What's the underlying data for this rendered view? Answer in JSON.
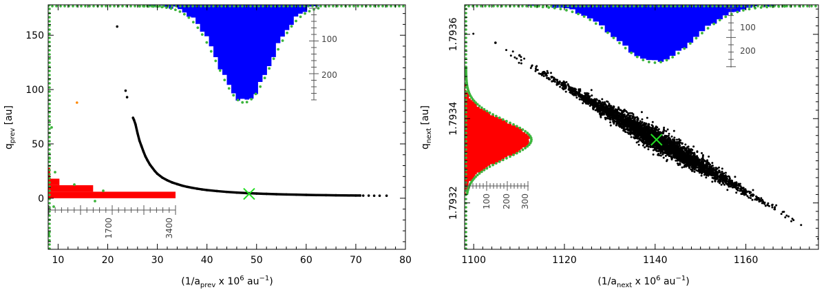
{
  "chart_data": [
    {
      "type": "scatter",
      "panel": "left",
      "xlabel": "(1/a_prev × 10^6 au^-1)",
      "xlabel_parts": {
        "open": "(1/a",
        "sub": "prev",
        "mid": " x 10",
        "sup1": "6",
        "unit": " au",
        "sup2": "−1",
        "close": ")"
      },
      "ylabel_parts": {
        "main": "q",
        "sub": "prev",
        "unit": " [au]"
      },
      "xlim": [
        8,
        80
      ],
      "ylim": [
        -47,
        178
      ],
      "xticks": [
        10,
        20,
        30,
        40,
        50,
        60,
        70,
        80
      ],
      "xtick_labels": [
        "10",
        "20",
        "30",
        "40",
        "50",
        "60",
        "70",
        "80"
      ],
      "yticks": [
        0,
        50,
        100,
        150
      ],
      "ytick_labels": [
        "0",
        "50",
        "100",
        "150"
      ],
      "nominal_orbit": {
        "x": 48.5,
        "y": 4,
        "marker": "x",
        "color": "#22dd22"
      },
      "outlier_point": {
        "x": 13.8,
        "y": 88,
        "color": "#ff8800"
      },
      "scatter_points": [
        [
          21.9,
          158
        ],
        [
          23.6,
          99
        ],
        [
          23.9,
          93
        ],
        [
          25.1,
          74
        ],
        [
          25.3,
          72
        ],
        [
          25.6,
          68
        ],
        [
          26.0,
          60
        ],
        [
          26.4,
          53
        ],
        [
          26.8,
          48
        ],
        [
          27.2,
          43
        ],
        [
          27.6,
          38.5
        ],
        [
          28.0,
          35
        ],
        [
          28.5,
          31
        ],
        [
          29.0,
          28
        ],
        [
          29.5,
          25
        ],
        [
          30.0,
          22.5
        ],
        [
          31.0,
          19
        ],
        [
          32.0,
          16.5
        ],
        [
          33.0,
          14.5
        ],
        [
          34.0,
          13
        ],
        [
          35.0,
          11.6
        ],
        [
          36.0,
          10.5
        ],
        [
          37.0,
          9.6
        ],
        [
          38.0,
          8.8
        ],
        [
          39.0,
          8.1
        ],
        [
          40.0,
          7.5
        ],
        [
          42.0,
          6.6
        ],
        [
          44.0,
          5.8
        ],
        [
          46.0,
          5.2
        ],
        [
          48.0,
          4.7
        ],
        [
          50.0,
          4.3
        ],
        [
          52.0,
          4.0
        ],
        [
          54.0,
          3.7
        ],
        [
          56.0,
          3.5
        ],
        [
          58.0,
          3.3
        ],
        [
          60.0,
          3.1
        ],
        [
          62.0,
          2.9
        ],
        [
          64.0,
          2.8
        ],
        [
          66.0,
          2.7
        ],
        [
          68.0,
          2.6
        ],
        [
          70.0,
          2.5
        ],
        [
          70.9,
          2.5
        ],
        [
          71.5,
          2.4
        ],
        [
          72.6,
          2.4
        ],
        [
          73.7,
          2.3
        ],
        [
          74.8,
          2.3
        ],
        [
          76.2,
          2.3
        ]
      ],
      "x_histogram": {
        "color": "#0000ff",
        "range": [
          26,
          62
        ],
        "peak_x": 47.5,
        "peak_count": 265,
        "inset_tick_labels": [
          "100",
          "200"
        ]
      },
      "y_histogram": {
        "color": "#ff0000",
        "bins": [
          {
            "y0": -47,
            "y1": 0,
            "count": 0
          },
          {
            "y0": 0,
            "y1": 6,
            "count": 3400
          },
          {
            "y0": 6,
            "y1": 12,
            "count": 1200
          },
          {
            "y0": 12,
            "y1": 18,
            "count": 300
          },
          {
            "y0": 18,
            "y1": 28,
            "count": 40
          }
        ],
        "inset_tick_labels": [
          "1700",
          "3400"
        ]
      }
    },
    {
      "type": "scatter",
      "panel": "right",
      "xlabel": "(1/a_next × 10^6 au^-1)",
      "xlabel_parts": {
        "open": "(1/a",
        "sub": "next",
        "mid": " x 10",
        "sup1": "6",
        "unit": " au",
        "sup2": "−1",
        "close": ")"
      },
      "ylabel_parts": {
        "main": "q",
        "sub": "next",
        "unit": " [au]"
      },
      "xlim": [
        1098,
        1176
      ],
      "ylim": [
        1.79309,
        1.79367
      ],
      "xticks": [
        1100,
        1120,
        1140,
        1160
      ],
      "xtick_labels": [
        "1100",
        "1120",
        "1140",
        "1160"
      ],
      "yticks": [
        1.7932,
        1.7934,
        1.7936
      ],
      "ytick_labels": [
        "1.7932",
        "1.7934",
        "1.7936"
      ],
      "nominal_orbit": {
        "x": 1140.3,
        "y": 1.79335,
        "marker": "x",
        "color": "#22dd22"
      },
      "cloud": {
        "start": [
          1116,
          1.79347
        ],
        "end": [
          1168.5,
          1.79314
        ],
        "outliers": [
          [
            1104.8,
            1.79358
          ],
          [
            1110.1,
            1.79355
          ]
        ]
      },
      "x_histogram": {
        "color": "#0000ff",
        "mean": 1140,
        "sigma": 8.5,
        "peak_count": 245,
        "inset_tick_labels": [
          "100",
          "200"
        ]
      },
      "y_histogram": {
        "color": "#ff0000",
        "mean": 1.79335,
        "sigma": 4.5e-05,
        "peak_count": 320,
        "inset_tick_labels": [
          "100",
          "200",
          "300"
        ]
      }
    }
  ]
}
